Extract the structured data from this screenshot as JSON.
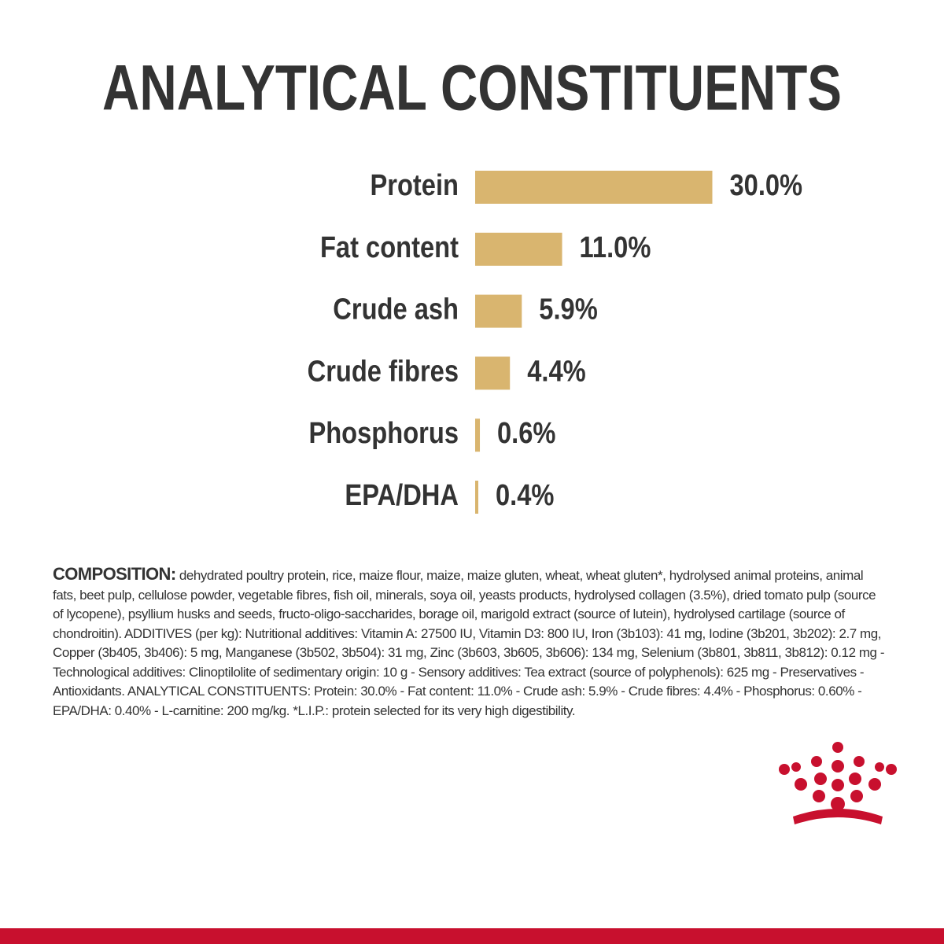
{
  "chart_data": {
    "type": "bar",
    "orientation": "horizontal",
    "title": "ANALYTICAL CONSTITUENTS",
    "categories": [
      "Protein",
      "Fat content",
      "Crude ash",
      "Crude fibres",
      "Phosphorus",
      "EPA/DHA"
    ],
    "values": [
      30.0,
      11.0,
      5.9,
      4.4,
      0.6,
      0.4
    ],
    "value_labels": [
      "30.0%",
      "11.0%",
      "5.9%",
      "4.4%",
      "0.6%",
      "0.4%"
    ],
    "color": "#d9b56f",
    "title_color": "#c8102e"
  },
  "composition": {
    "heading": "COMPOSITION:",
    "text": "dehydrated poultry protein, rice, maize flour, maize, maize gluten, wheat, wheat gluten*, hydrolysed animal proteins, animal fats, beet pulp, cellulose powder, vegetable fibres, fish oil, minerals, soya oil, yeasts products, hydrolysed collagen (3.5%), dried tomato pulp (source of lycopene), psyllium husks and seeds, fructo-oligo-saccharides, borage oil, marigold extract (source of lutein), hydrolysed cartilage (source of chondroitin). ADDITIVES (per kg): Nutritional additives: Vitamin A: 27500 IU, Vitamin D3: 800 IU, Iron (3b103): 41 mg, Iodine (3b201, 3b202): 2.7 mg, Copper (3b405, 3b406): 5 mg, Manganese (3b502, 3b504): 31 mg, Zinc (3b603, 3b605, 3b606): 134 mg, Selenium (3b801, 3b811, 3b812): 0.12 mg - Technological additives: Clinoptilolite of sedimentary origin: 10 g - Sensory additives: Tea extract (source of polyphenols): 625 mg - Preservatives - Antioxidants. ANALYTICAL CONSTITUENTS: Protein: 30.0% - Fat content: 11.0% - Crude ash: 5.9% - Crude fibres: 4.4% - Phosphorus: 0.60% - EPA/DHA: 0.40% - L-carnitine: 200 mg/kg. *L.I.P.: protein selected for its very high digestibility."
  }
}
